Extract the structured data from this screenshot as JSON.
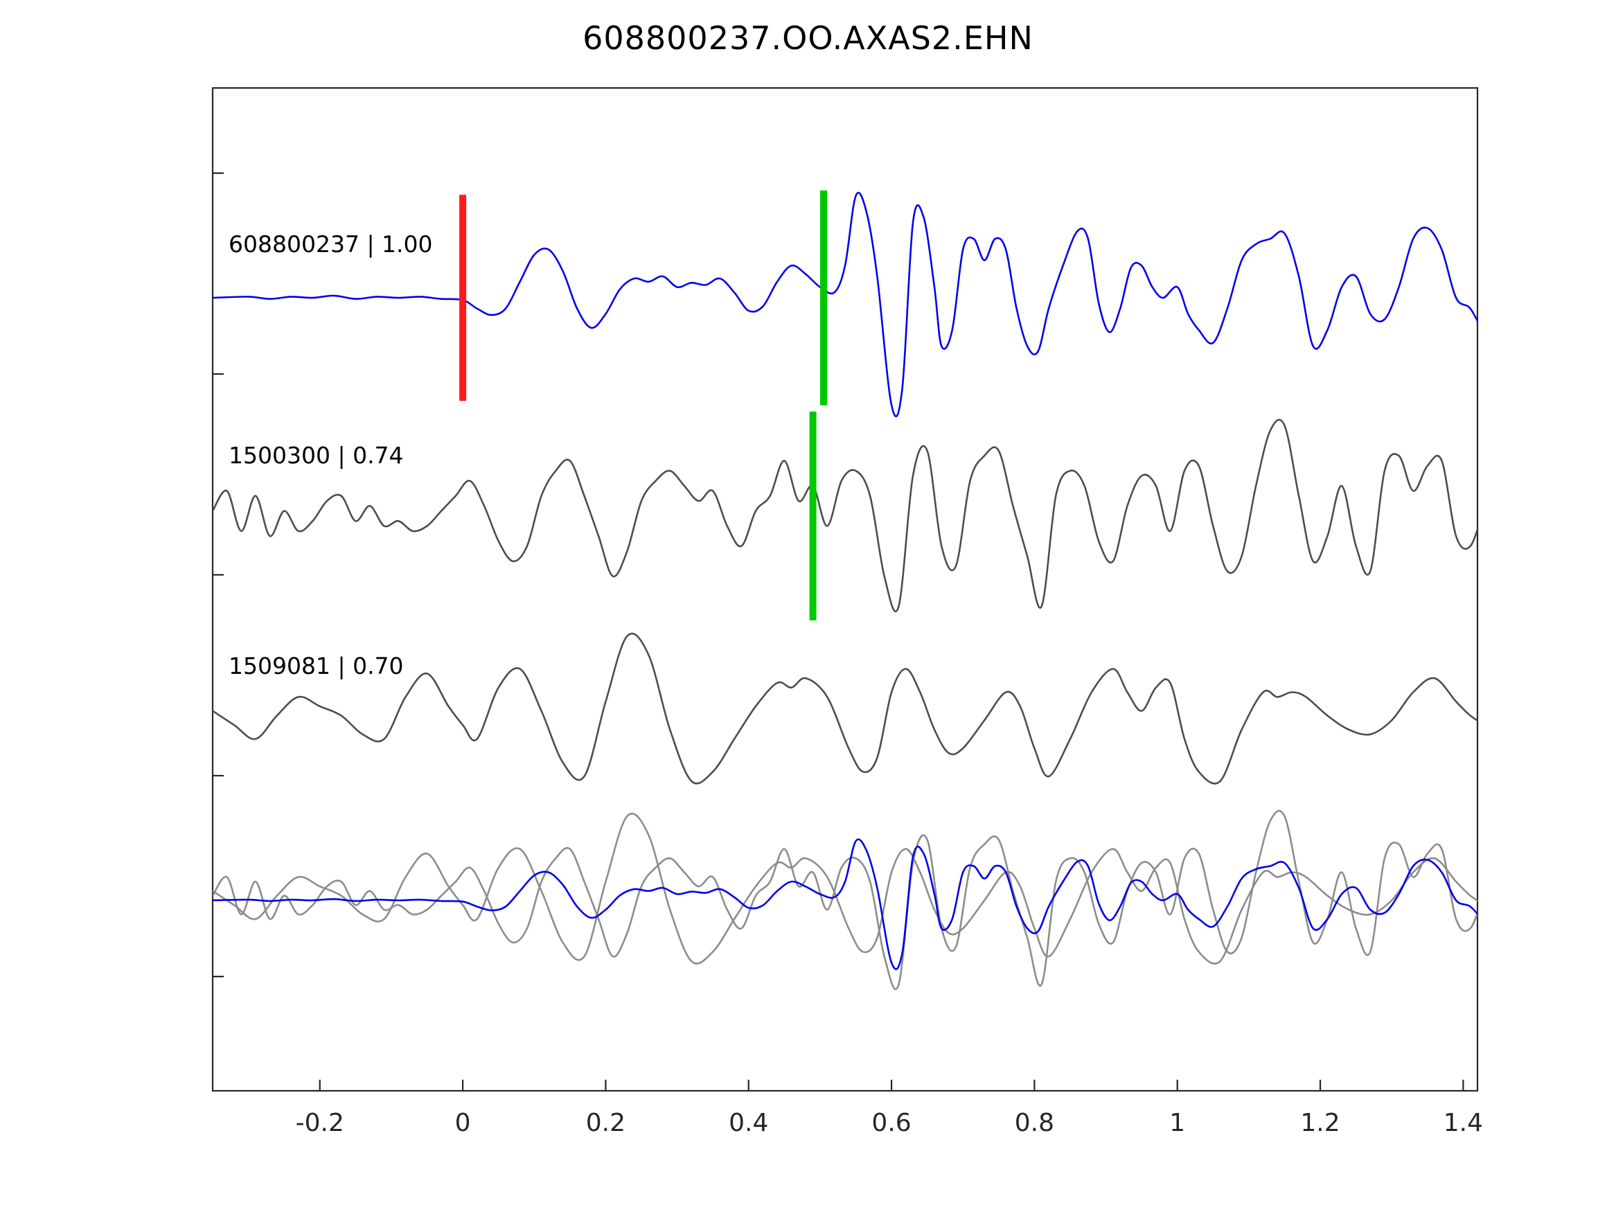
{
  "title": "608800237.OO.AXAS2.EHN",
  "chart_data": {
    "type": "line",
    "title": "608800237.OO.AXAS2.EHN",
    "xlabel": "",
    "ylabel": "",
    "grid": false,
    "legend": "none",
    "xlim": [
      -0.35,
      1.42
    ],
    "x_ticks": [
      -0.2,
      0,
      0.2,
      0.4,
      0.6,
      0.8,
      1,
      1.2,
      1.4
    ],
    "x_tick_labels": [
      "-0.2",
      "0",
      "0.2",
      "0.4",
      "0.6",
      "0.8",
      "1",
      "1.2",
      "1.4"
    ],
    "colors": {
      "trace_blue": "#0000ee",
      "trace_gray": "#4d4d4d",
      "overlay_gray": "#8c8c8c",
      "marker_red": "#ff1a1a",
      "marker_green": "#00c800",
      "axis": "#262626"
    },
    "traces": [
      {
        "id": "608800237",
        "label": "608800237 | 1.00",
        "correlation": 1.0,
        "color": "trace_blue",
        "points": [
          [
            -0.35,
            0.0
          ],
          [
            -0.3,
            0.01
          ],
          [
            -0.27,
            -0.01
          ],
          [
            -0.24,
            0.01
          ],
          [
            -0.21,
            0.0
          ],
          [
            -0.18,
            0.02
          ],
          [
            -0.15,
            -0.01
          ],
          [
            -0.12,
            0.01
          ],
          [
            -0.09,
            0.0
          ],
          [
            -0.06,
            0.01
          ],
          [
            -0.03,
            -0.01
          ],
          [
            0.0,
            -0.02
          ],
          [
            0.02,
            -0.1
          ],
          [
            0.04,
            -0.16
          ],
          [
            0.06,
            -0.1
          ],
          [
            0.08,
            0.15
          ],
          [
            0.1,
            0.4
          ],
          [
            0.12,
            0.45
          ],
          [
            0.14,
            0.25
          ],
          [
            0.16,
            -0.1
          ],
          [
            0.18,
            -0.28
          ],
          [
            0.2,
            -0.15
          ],
          [
            0.22,
            0.08
          ],
          [
            0.24,
            0.18
          ],
          [
            0.26,
            0.15
          ],
          [
            0.28,
            0.2
          ],
          [
            0.3,
            0.1
          ],
          [
            0.32,
            0.14
          ],
          [
            0.34,
            0.12
          ],
          [
            0.36,
            0.18
          ],
          [
            0.38,
            0.05
          ],
          [
            0.4,
            -0.12
          ],
          [
            0.42,
            -0.08
          ],
          [
            0.44,
            0.15
          ],
          [
            0.46,
            0.3
          ],
          [
            0.48,
            0.22
          ],
          [
            0.5,
            0.1
          ],
          [
            0.52,
            0.05
          ],
          [
            0.535,
            0.3
          ],
          [
            0.55,
            0.95
          ],
          [
            0.565,
            0.8
          ],
          [
            0.58,
            0.2
          ],
          [
            0.6,
            -1.0
          ],
          [
            0.615,
            -0.85
          ],
          [
            0.63,
            0.7
          ],
          [
            0.645,
            0.75
          ],
          [
            0.66,
            0.1
          ],
          [
            0.67,
            -0.45
          ],
          [
            0.685,
            -0.3
          ],
          [
            0.7,
            0.45
          ],
          [
            0.715,
            0.55
          ],
          [
            0.73,
            0.35
          ],
          [
            0.745,
            0.55
          ],
          [
            0.76,
            0.45
          ],
          [
            0.775,
            -0.1
          ],
          [
            0.79,
            -0.45
          ],
          [
            0.805,
            -0.5
          ],
          [
            0.82,
            -0.1
          ],
          [
            0.84,
            0.3
          ],
          [
            0.86,
            0.62
          ],
          [
            0.875,
            0.55
          ],
          [
            0.89,
            -0.05
          ],
          [
            0.905,
            -0.32
          ],
          [
            0.92,
            -0.1
          ],
          [
            0.935,
            0.28
          ],
          [
            0.95,
            0.3
          ],
          [
            0.965,
            0.1
          ],
          [
            0.98,
            0.0
          ],
          [
            1.0,
            0.1
          ],
          [
            1.015,
            -0.15
          ],
          [
            1.03,
            -0.3
          ],
          [
            1.05,
            -0.42
          ],
          [
            1.07,
            -0.1
          ],
          [
            1.09,
            0.35
          ],
          [
            1.11,
            0.5
          ],
          [
            1.13,
            0.55
          ],
          [
            1.15,
            0.6
          ],
          [
            1.17,
            0.2
          ],
          [
            1.19,
            -0.45
          ],
          [
            1.21,
            -0.3
          ],
          [
            1.23,
            0.1
          ],
          [
            1.25,
            0.2
          ],
          [
            1.27,
            -0.15
          ],
          [
            1.29,
            -0.2
          ],
          [
            1.31,
            0.1
          ],
          [
            1.33,
            0.55
          ],
          [
            1.35,
            0.65
          ],
          [
            1.37,
            0.45
          ],
          [
            1.39,
            0.0
          ],
          [
            1.41,
            -0.1
          ],
          [
            1.43,
            -0.35
          ]
        ]
      },
      {
        "id": "1500300",
        "label": "1500300 | 0.74",
        "correlation": 0.74,
        "color": "trace_gray",
        "points": [
          [
            -0.35,
            0.05
          ],
          [
            -0.33,
            0.25
          ],
          [
            -0.31,
            -0.15
          ],
          [
            -0.29,
            0.2
          ],
          [
            -0.27,
            -0.2
          ],
          [
            -0.25,
            0.05
          ],
          [
            -0.23,
            -0.15
          ],
          [
            -0.21,
            -0.05
          ],
          [
            -0.19,
            0.15
          ],
          [
            -0.17,
            0.2
          ],
          [
            -0.15,
            -0.05
          ],
          [
            -0.13,
            0.1
          ],
          [
            -0.11,
            -0.1
          ],
          [
            -0.09,
            -0.05
          ],
          [
            -0.07,
            -0.15
          ],
          [
            -0.05,
            -0.1
          ],
          [
            -0.03,
            0.05
          ],
          [
            -0.01,
            0.2
          ],
          [
            0.01,
            0.35
          ],
          [
            0.03,
            0.1
          ],
          [
            0.05,
            -0.25
          ],
          [
            0.07,
            -0.45
          ],
          [
            0.09,
            -0.3
          ],
          [
            0.11,
            0.2
          ],
          [
            0.13,
            0.45
          ],
          [
            0.15,
            0.55
          ],
          [
            0.17,
            0.2
          ],
          [
            0.19,
            -0.2
          ],
          [
            0.21,
            -0.6
          ],
          [
            0.23,
            -0.35
          ],
          [
            0.25,
            0.15
          ],
          [
            0.27,
            0.35
          ],
          [
            0.29,
            0.45
          ],
          [
            0.31,
            0.3
          ],
          [
            0.33,
            0.15
          ],
          [
            0.35,
            0.25
          ],
          [
            0.37,
            -0.1
          ],
          [
            0.39,
            -0.3
          ],
          [
            0.41,
            0.05
          ],
          [
            0.43,
            0.2
          ],
          [
            0.45,
            0.55
          ],
          [
            0.47,
            0.15
          ],
          [
            0.49,
            0.3
          ],
          [
            0.51,
            -0.1
          ],
          [
            0.53,
            0.35
          ],
          [
            0.55,
            0.45
          ],
          [
            0.57,
            0.2
          ],
          [
            0.59,
            -0.6
          ],
          [
            0.61,
            -0.9
          ],
          [
            0.63,
            0.4
          ],
          [
            0.65,
            0.65
          ],
          [
            0.67,
            -0.3
          ],
          [
            0.69,
            -0.5
          ],
          [
            0.71,
            0.35
          ],
          [
            0.73,
            0.6
          ],
          [
            0.75,
            0.65
          ],
          [
            0.77,
            0.1
          ],
          [
            0.79,
            -0.4
          ],
          [
            0.81,
            -0.9
          ],
          [
            0.83,
            0.2
          ],
          [
            0.85,
            0.45
          ],
          [
            0.87,
            0.3
          ],
          [
            0.89,
            -0.25
          ],
          [
            0.91,
            -0.45
          ],
          [
            0.93,
            0.1
          ],
          [
            0.95,
            0.4
          ],
          [
            0.97,
            0.3
          ],
          [
            0.99,
            -0.15
          ],
          [
            1.01,
            0.45
          ],
          [
            1.03,
            0.5
          ],
          [
            1.05,
            -0.1
          ],
          [
            1.07,
            -0.55
          ],
          [
            1.09,
            -0.4
          ],
          [
            1.11,
            0.3
          ],
          [
            1.13,
            0.85
          ],
          [
            1.15,
            0.9
          ],
          [
            1.17,
            0.2
          ],
          [
            1.19,
            -0.45
          ],
          [
            1.21,
            -0.2
          ],
          [
            1.23,
            0.3
          ],
          [
            1.25,
            -0.3
          ],
          [
            1.27,
            -0.55
          ],
          [
            1.29,
            0.45
          ],
          [
            1.31,
            0.6
          ],
          [
            1.33,
            0.25
          ],
          [
            1.35,
            0.5
          ],
          [
            1.37,
            0.55
          ],
          [
            1.39,
            -0.2
          ],
          [
            1.41,
            -0.3
          ],
          [
            1.43,
            0.1
          ]
        ]
      },
      {
        "id": "1509081",
        "label": "1509081 | 0.70",
        "correlation": 0.7,
        "color": "trace_gray",
        "points": [
          [
            -0.35,
            0.1
          ],
          [
            -0.32,
            -0.05
          ],
          [
            -0.29,
            -0.2
          ],
          [
            -0.26,
            0.05
          ],
          [
            -0.23,
            0.25
          ],
          [
            -0.2,
            0.15
          ],
          [
            -0.17,
            0.05
          ],
          [
            -0.14,
            -0.15
          ],
          [
            -0.11,
            -0.2
          ],
          [
            -0.08,
            0.25
          ],
          [
            -0.05,
            0.5
          ],
          [
            -0.02,
            0.15
          ],
          [
            0.0,
            -0.05
          ],
          [
            0.02,
            -0.2
          ],
          [
            0.05,
            0.35
          ],
          [
            0.08,
            0.55
          ],
          [
            0.11,
            0.1
          ],
          [
            0.14,
            -0.45
          ],
          [
            0.17,
            -0.6
          ],
          [
            0.2,
            0.2
          ],
          [
            0.23,
            0.9
          ],
          [
            0.26,
            0.7
          ],
          [
            0.29,
            -0.1
          ],
          [
            0.32,
            -0.65
          ],
          [
            0.35,
            -0.55
          ],
          [
            0.38,
            -0.2
          ],
          [
            0.41,
            0.15
          ],
          [
            0.44,
            0.4
          ],
          [
            0.46,
            0.35
          ],
          [
            0.48,
            0.45
          ],
          [
            0.51,
            0.25
          ],
          [
            0.54,
            -0.3
          ],
          [
            0.56,
            -0.55
          ],
          [
            0.58,
            -0.4
          ],
          [
            0.6,
            0.3
          ],
          [
            0.62,
            0.55
          ],
          [
            0.64,
            0.3
          ],
          [
            0.66,
            -0.1
          ],
          [
            0.68,
            -0.35
          ],
          [
            0.7,
            -0.3
          ],
          [
            0.73,
            0.0
          ],
          [
            0.76,
            0.3
          ],
          [
            0.78,
            0.15
          ],
          [
            0.8,
            -0.3
          ],
          [
            0.82,
            -0.6
          ],
          [
            0.85,
            -0.2
          ],
          [
            0.88,
            0.3
          ],
          [
            0.91,
            0.55
          ],
          [
            0.93,
            0.3
          ],
          [
            0.95,
            0.1
          ],
          [
            0.97,
            0.35
          ],
          [
            0.99,
            0.4
          ],
          [
            1.01,
            -0.2
          ],
          [
            1.03,
            -0.55
          ],
          [
            1.06,
            -0.65
          ],
          [
            1.09,
            -0.1
          ],
          [
            1.12,
            0.3
          ],
          [
            1.14,
            0.25
          ],
          [
            1.16,
            0.3
          ],
          [
            1.18,
            0.25
          ],
          [
            1.21,
            0.05
          ],
          [
            1.24,
            -0.1
          ],
          [
            1.27,
            -0.15
          ],
          [
            1.3,
            0.0
          ],
          [
            1.33,
            0.3
          ],
          [
            1.36,
            0.45
          ],
          [
            1.39,
            0.2
          ],
          [
            1.41,
            0.05
          ],
          [
            1.43,
            -0.05
          ]
        ]
      }
    ],
    "overlay": {
      "description": "all traces overlaid on common baseline",
      "components": [
        {
          "trace": 1,
          "color": "overlay_gray",
          "scale": 0.9
        },
        {
          "trace": 2,
          "color": "overlay_gray",
          "scale": 0.9
        },
        {
          "trace": 0,
          "color": "trace_blue",
          "scale": 0.6
        }
      ]
    },
    "markers": [
      {
        "trace": 0,
        "x": 0.0,
        "color": "marker_red",
        "half_height": 0.48
      },
      {
        "trace": 0,
        "x": 0.505,
        "color": "marker_green",
        "half_height": 0.5
      },
      {
        "trace": 1,
        "x": 0.49,
        "color": "marker_green",
        "half_height": 0.52
      }
    ]
  }
}
